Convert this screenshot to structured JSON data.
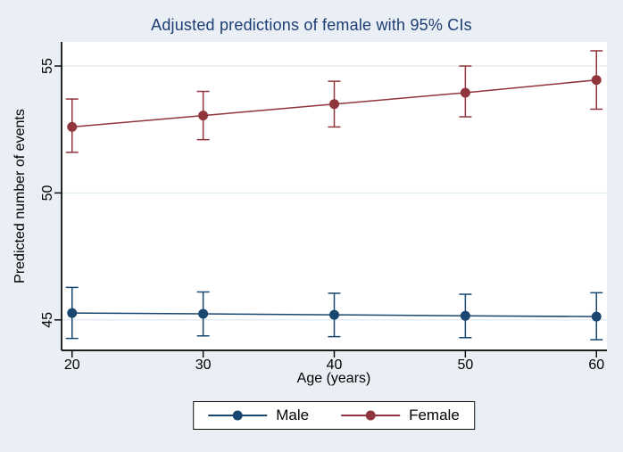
{
  "chart_data": {
    "type": "line",
    "title": "Adjusted predictions of female with 95% CIs",
    "xlabel": "Age (years)",
    "ylabel": "Predicted number of events",
    "x": [
      20,
      30,
      40,
      50,
      60
    ],
    "x_ticks": [
      20,
      30,
      40,
      50,
      60
    ],
    "y_ticks": [
      45,
      50,
      55
    ],
    "xlim": [
      19.2,
      60.8
    ],
    "ylim": [
      43.8,
      55.95
    ],
    "grid": "horizontal-y",
    "error_bars": "95% CI",
    "legend_position": "bottom-center",
    "series": [
      {
        "name": "Male",
        "color": "#1a476f",
        "values": [
          45.27,
          45.24,
          45.2,
          45.16,
          45.13
        ],
        "ci_low": [
          44.27,
          44.37,
          44.34,
          44.3,
          44.22
        ],
        "ci_high": [
          46.28,
          46.1,
          46.05,
          46.01,
          46.07
        ]
      },
      {
        "name": "Female",
        "color": "#90353b",
        "values": [
          52.6,
          53.05,
          53.5,
          53.95,
          54.45
        ],
        "ci_low": [
          51.6,
          52.1,
          52.6,
          53.0,
          53.3
        ],
        "ci_high": [
          53.7,
          54.0,
          54.4,
          55.0,
          55.6
        ]
      }
    ]
  },
  "style": {
    "background_color": "#e9eff4",
    "plot_background": "#ffffff",
    "grid_color": "#dce8f0",
    "axis_color": "#000000",
    "title_color": "#1d3d74"
  }
}
